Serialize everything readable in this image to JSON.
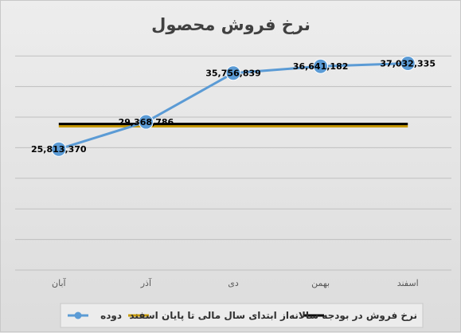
{
  "chart_data": {
    "type": "line",
    "title": "نرخ فروش محصول",
    "categories": [
      "آبان",
      "آذر",
      "دی",
      "بهمن",
      "اسفند"
    ],
    "series": [
      {
        "name": "دوده",
        "values": [
          25813370,
          29368786,
          35756839,
          36641182,
          37032335
        ],
        "labels": [
          "25,813,370",
          "29,368,786",
          "35,756,839",
          "36,641,182",
          "37,032,335"
        ],
        "color": "#5b9bd5",
        "style": "line-with-markers"
      },
      {
        "name": "از ابتدای سال مالی تا پایان اسفند",
        "values": [
          28800000,
          28800000,
          28800000,
          28800000,
          28800000
        ],
        "color": "#c89a00",
        "style": "line"
      },
      {
        "name": "نرخ فروش در بودجه سالانه",
        "values": [
          29100000,
          29100000,
          29100000,
          29100000,
          29100000
        ],
        "color": "#000000",
        "style": "line"
      }
    ],
    "ylim": [
      10000000,
      40000000
    ],
    "y_gridline_step": 4000000,
    "y_tick_labels_shown": false,
    "grid": true,
    "legend_position": "bottom"
  }
}
